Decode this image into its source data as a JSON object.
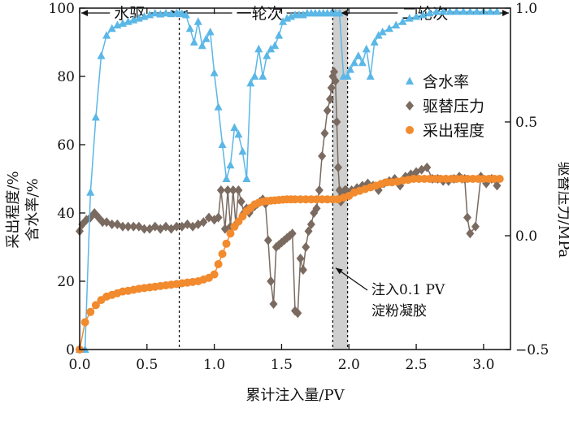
{
  "chart_data": {
    "type": "line",
    "xlabel": "累计注入量/PV",
    "ylabel_left": "采出程度/%",
    "ylabel_left_2": "含水率/%",
    "ylabel_right": "驱替压力/MPa",
    "xlim": [
      0,
      3.2
    ],
    "ylim_left": [
      0,
      100
    ],
    "ylim_right": [
      -0.5,
      1.0
    ],
    "x_ticks": [
      "0.0",
      "0.5",
      "1.0",
      "1.5",
      "2.0",
      "2.5",
      "3.0"
    ],
    "x_tick_values": [
      0.0,
      0.5,
      1.0,
      1.5,
      2.0,
      2.5,
      3.0
    ],
    "y_left_ticks": [
      "0",
      "20",
      "40",
      "60",
      "80",
      "100"
    ],
    "y_left_tick_values": [
      0,
      20,
      40,
      60,
      80,
      100
    ],
    "y_right_ticks": [
      "−0.5",
      "0.0",
      "0.5",
      "1.0"
    ],
    "y_right_tick_values": [
      -0.5,
      0.0,
      0.5,
      1.0
    ],
    "phases": [
      {
        "label": "水驱",
        "x_start": 0.0,
        "x_end": 0.74
      },
      {
        "label": "一轮次",
        "x_start": 0.74,
        "x_end": 1.93
      },
      {
        "label": "二轮次",
        "x_start": 1.93,
        "x_end": 3.2
      }
    ],
    "phase_dividers": [
      0.74,
      1.88,
      1.99
    ],
    "shaded_interval": [
      1.88,
      1.99
    ],
    "annotation": {
      "line1": "注入0.1 PV",
      "line2": "淀粉凝胶",
      "target": [
        1.95,
        22
      ]
    },
    "legend": [
      {
        "name": "含水率",
        "color": "#5bb7e6",
        "marker": "triangle"
      },
      {
        "name": "驱替压力",
        "color": "#7a6a60",
        "marker": "diamond"
      },
      {
        "name": "采出程度",
        "color": "#f28a2e",
        "marker": "circle"
      }
    ],
    "legend_position": "right-middle",
    "series": [
      {
        "name": "含水率",
        "axis": "left",
        "color": "#5bb7e6",
        "marker": "triangle",
        "x": [
          0.0,
          0.04,
          0.08,
          0.12,
          0.16,
          0.2,
          0.24,
          0.28,
          0.32,
          0.36,
          0.4,
          0.44,
          0.48,
          0.52,
          0.56,
          0.6,
          0.64,
          0.68,
          0.72,
          0.74,
          0.76,
          0.79,
          0.82,
          0.85,
          0.88,
          0.91,
          0.94,
          0.97,
          1.0,
          1.03,
          1.06,
          1.09,
          1.12,
          1.15,
          1.18,
          1.21,
          1.24,
          1.27,
          1.3,
          1.33,
          1.36,
          1.39,
          1.42,
          1.45,
          1.48,
          1.51,
          1.54,
          1.57,
          1.6,
          1.63,
          1.66,
          1.69,
          1.72,
          1.75,
          1.78,
          1.81,
          1.84,
          1.87,
          1.9,
          1.93,
          1.96,
          1.99,
          2.01,
          2.04,
          2.07,
          2.1,
          2.13,
          2.16,
          2.19,
          2.22,
          2.25,
          2.3,
          2.35,
          2.4,
          2.45,
          2.5,
          2.55,
          2.6,
          2.65,
          2.7,
          2.75,
          2.8,
          2.85,
          2.9,
          2.95,
          3.0,
          3.05,
          3.1
        ],
        "y": [
          0,
          0,
          46,
          68,
          86,
          92,
          94,
          95,
          95.5,
          96,
          96.5,
          97,
          97.5,
          98,
          98.5,
          98.2,
          98.5,
          98.3,
          98.6,
          98.3,
          98.4,
          98,
          94,
          90,
          96,
          89,
          91,
          93,
          81,
          71,
          60,
          50,
          54,
          65,
          63,
          58,
          50,
          78,
          80,
          88,
          80,
          86,
          88,
          89,
          92,
          96,
          97,
          97.5,
          98,
          98,
          98,
          98.5,
          98.5,
          98.5,
          98.5,
          98.5,
          98.5,
          98.5,
          98.5,
          98.5,
          80,
          80,
          82,
          84,
          86,
          84,
          88,
          80,
          90,
          92,
          93,
          94,
          95,
          96,
          97,
          97.5,
          98,
          98.5,
          99,
          99,
          99,
          99,
          99,
          99,
          99,
          99,
          99,
          99
        ]
      },
      {
        "name": "驱替压力",
        "axis": "right",
        "color": "#7a6a60",
        "marker": "diamond",
        "x": [
          0.0,
          0.02,
          0.05,
          0.08,
          0.11,
          0.14,
          0.17,
          0.2,
          0.24,
          0.28,
          0.32,
          0.36,
          0.4,
          0.44,
          0.48,
          0.52,
          0.56,
          0.6,
          0.64,
          0.68,
          0.72,
          0.76,
          0.8,
          0.84,
          0.88,
          0.92,
          0.96,
          1.0,
          1.03,
          1.05,
          1.08,
          1.1,
          1.12,
          1.14,
          1.16,
          1.18,
          1.2,
          1.22,
          1.24,
          1.26,
          1.28,
          1.3,
          1.32,
          1.34,
          1.36,
          1.38,
          1.4,
          1.42,
          1.44,
          1.46,
          1.48,
          1.5,
          1.52,
          1.54,
          1.56,
          1.58,
          1.6,
          1.62,
          1.64,
          1.66,
          1.68,
          1.7,
          1.72,
          1.74,
          1.76,
          1.78,
          1.8,
          1.82,
          1.84,
          1.86,
          1.87,
          1.88,
          1.89,
          1.9,
          1.91,
          1.92,
          1.93,
          1.94,
          1.95,
          1.96,
          1.97,
          1.98,
          1.99,
          2.02,
          2.06,
          2.1,
          2.14,
          2.18,
          2.22,
          2.26,
          2.3,
          2.34,
          2.38,
          2.42,
          2.46,
          2.5,
          2.54,
          2.58,
          2.62,
          2.66,
          2.7,
          2.74,
          2.78,
          2.82,
          2.84,
          2.86,
          2.88,
          2.9,
          2.94,
          2.98,
          3.02,
          3.06,
          3.1
        ],
        "y": [
          0.02,
          0.05,
          0.07,
          0.08,
          0.1,
          0.08,
          0.06,
          0.06,
          0.05,
          0.05,
          0.04,
          0.04,
          0.04,
          0.04,
          0.03,
          0.03,
          0.04,
          0.03,
          0.04,
          0.03,
          0.04,
          0.04,
          0.05,
          0.04,
          0.05,
          0.06,
          0.08,
          0.07,
          0.08,
          0.2,
          0.03,
          0.2,
          0.04,
          0.2,
          0.05,
          0.2,
          0.15,
          0.1,
          0.12,
          0.1,
          0.12,
          0.13,
          0.14,
          0.15,
          0.16,
          0.14,
          -0.02,
          -0.2,
          -0.3,
          -0.05,
          -0.04,
          -0.03,
          -0.02,
          -0.01,
          0.0,
          0.01,
          -0.33,
          -0.34,
          -0.1,
          -0.15,
          -0.05,
          0.02,
          0.05,
          0.1,
          0.12,
          0.2,
          0.35,
          0.45,
          0.55,
          0.6,
          0.65,
          0.7,
          0.72,
          0.68,
          0.5,
          0.3,
          0.2,
          0.15,
          0.18,
          0.18,
          0.2,
          0.2,
          0.19,
          0.2,
          0.21,
          0.22,
          0.23,
          0.22,
          0.2,
          0.23,
          0.24,
          0.25,
          0.22,
          0.26,
          0.27,
          0.28,
          0.29,
          0.3,
          0.25,
          0.25,
          0.24,
          0.24,
          0.25,
          0.26,
          0.25,
          0.25,
          0.08,
          0.01,
          0.04,
          0.26,
          0.23,
          0.25,
          0.22
        ]
      },
      {
        "name": "采出程度",
        "axis": "left",
        "color": "#f28a2e",
        "marker": "circle",
        "x": [
          0.0,
          0.04,
          0.08,
          0.12,
          0.16,
          0.2,
          0.24,
          0.28,
          0.32,
          0.36,
          0.4,
          0.44,
          0.48,
          0.52,
          0.56,
          0.6,
          0.64,
          0.68,
          0.72,
          0.76,
          0.8,
          0.84,
          0.88,
          0.92,
          0.96,
          1.0,
          1.03,
          1.06,
          1.09,
          1.12,
          1.15,
          1.18,
          1.21,
          1.24,
          1.27,
          1.3,
          1.33,
          1.36,
          1.39,
          1.42,
          1.45,
          1.48,
          1.51,
          1.54,
          1.57,
          1.6,
          1.64,
          1.68,
          1.72,
          1.76,
          1.8,
          1.84,
          1.88,
          1.92,
          1.96,
          2.0,
          2.04,
          2.08,
          2.12,
          2.16,
          2.2,
          2.24,
          2.28,
          2.32,
          2.36,
          2.4,
          2.44,
          2.48,
          2.52,
          2.56,
          2.6,
          2.64,
          2.68,
          2.72,
          2.76,
          2.8,
          2.84,
          2.88,
          2.92,
          2.96,
          3.0,
          3.04,
          3.08,
          3.12
        ],
        "y": [
          0,
          8,
          11,
          13,
          14.5,
          15.5,
          16,
          16.5,
          17,
          17.2,
          17.5,
          17.8,
          18,
          18.2,
          18.4,
          18.6,
          18.8,
          19,
          19.2,
          19.4,
          19.6,
          19.8,
          20,
          20.5,
          21,
          22,
          25,
          28,
          31,
          34,
          36,
          37.5,
          39,
          40.5,
          41.5,
          42.5,
          43,
          43.3,
          43.5,
          43.6,
          43.7,
          43.8,
          43.9,
          44,
          44,
          44,
          44,
          44,
          44,
          44,
          44,
          44,
          44,
          44,
          44.5,
          45,
          46,
          46.5,
          47,
          47.5,
          48,
          48.5,
          49,
          49,
          49.2,
          49.5,
          49.7,
          50,
          50,
          50,
          50,
          50,
          50,
          50,
          50,
          50,
          50,
          50,
          50,
          50,
          50,
          50,
          50,
          50
        ]
      }
    ]
  }
}
